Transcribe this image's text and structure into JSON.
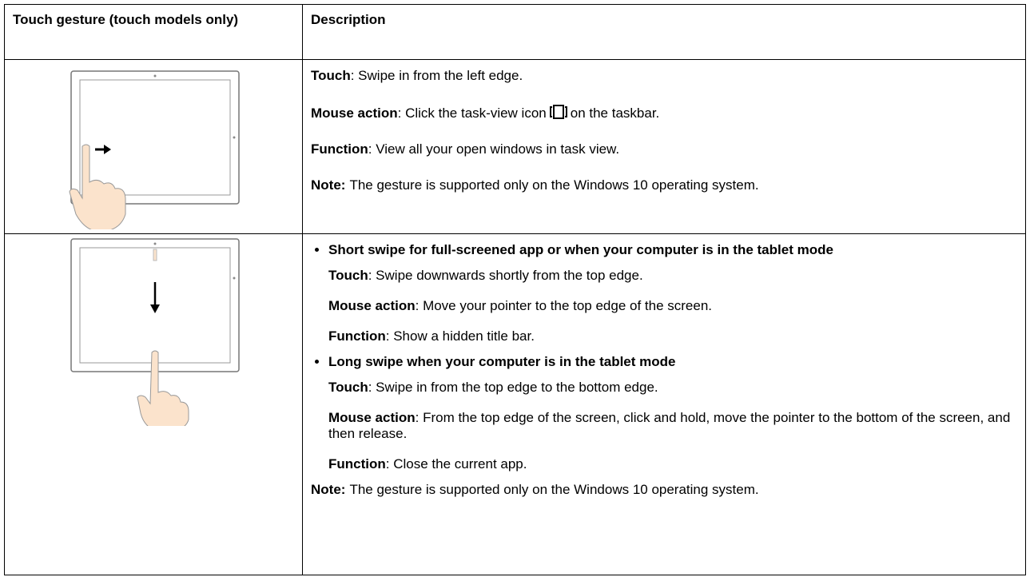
{
  "table": {
    "header": [
      "Touch gesture (touch models only)",
      "Description"
    ],
    "rows": [
      {
        "items": [
          {
            "label": "Touch",
            "text": ": Swipe in from the left edge."
          },
          {
            "label": "Mouse action",
            "text": ": Click the task-view icon",
            "text_after": "on the taskbar."
          },
          {
            "label": "Function",
            "text": ": View all your open windows in task view."
          },
          {
            "label": "Note:",
            "text": "The gesture is supported only on the Windows 10 operating system."
          }
        ]
      },
      {
        "bullets": [
          {
            "heading": "Short swipe for full-screened app or when your computer is in the tablet mode",
            "items": [
              {
                "label": "Touch",
                "text": ": Swipe downwards shortly from the top edge."
              },
              {
                "label": "Mouse action",
                "text": ": Move your pointer to the top edge of the screen."
              },
              {
                "label": "Function",
                "text": ": Show a hidden title bar."
              }
            ]
          },
          {
            "heading": "Long swipe when your computer is in the tablet mode",
            "items": [
              {
                "label": "Touch",
                "text": ": Swipe in from the top edge to the bottom edge."
              },
              {
                "label": "Mouse action",
                "text": ": From the top edge of the screen, click and hold, move the pointer to the bottom of the screen, and then release."
              },
              {
                "label": "Function",
                "text": ": Close the current app."
              }
            ]
          }
        ],
        "note": {
          "label": "Note:",
          "text": "The gesture is supported only on the Windows 10 operating system."
        }
      }
    ]
  }
}
